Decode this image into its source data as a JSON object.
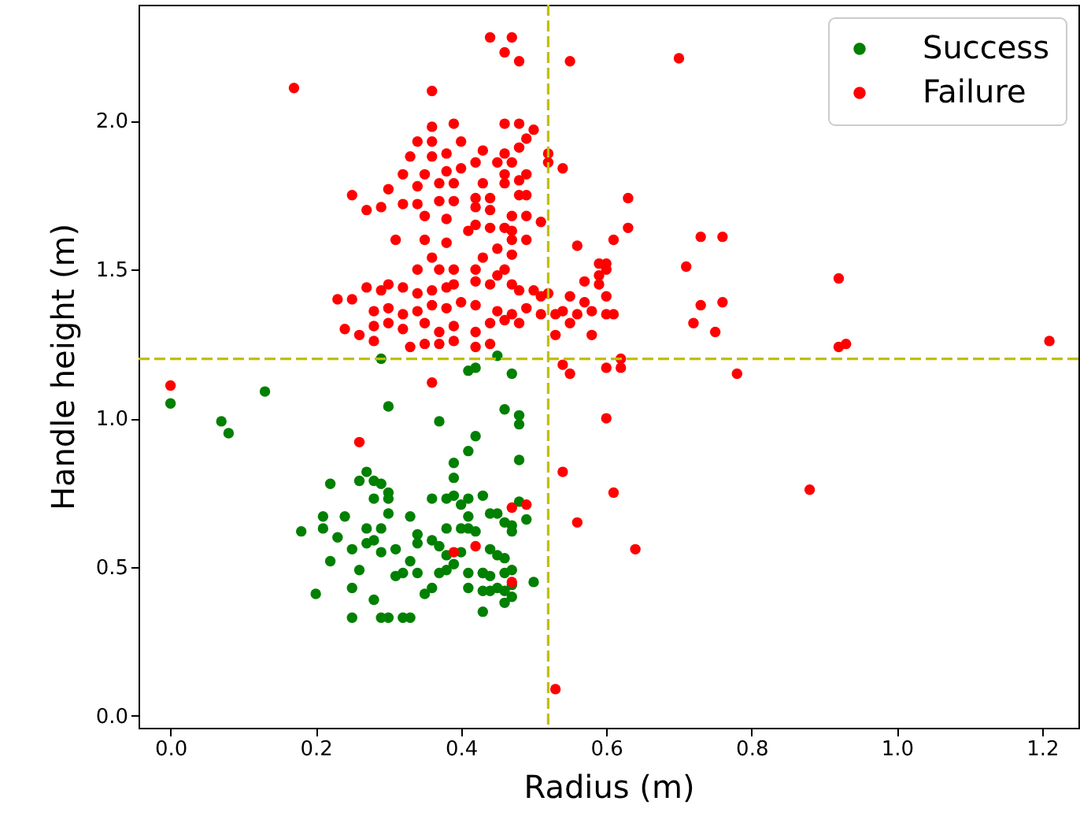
{
  "chart_data": {
    "type": "scatter",
    "xlabel": "Radius (m)",
    "ylabel": "Handle height (m)",
    "xlim": [
      -0.044,
      1.25
    ],
    "ylim": [
      -0.04,
      2.39
    ],
    "xticks": [
      {
        "value": 0,
        "label": "0.0"
      },
      {
        "value": 0.2,
        "label": "0.2"
      },
      {
        "value": 0.4,
        "label": "0.4"
      },
      {
        "value": 0.6,
        "label": "0.6"
      },
      {
        "value": 0.8,
        "label": "0.8"
      },
      {
        "value": 1,
        "label": "1.0"
      },
      {
        "value": 1.2,
        "label": "1.2"
      }
    ],
    "yticks": [
      {
        "value": 0,
        "label": "0.0"
      },
      {
        "value": 0.5,
        "label": "0.5"
      },
      {
        "value": 1,
        "label": "1.0"
      },
      {
        "value": 1.5,
        "label": "1.5"
      },
      {
        "value": 2,
        "label": "2.0"
      }
    ],
    "grid": false,
    "legend": "top right",
    "marker": "circle",
    "ref_lines": [
      {
        "axis": "x",
        "value": 0.52,
        "color": "#bfbf00",
        "line_style": "dashed"
      },
      {
        "axis": "y",
        "value": 1.2,
        "color": "#bfbf00",
        "line_style": "dashed"
      }
    ],
    "series": [
      {
        "name": "Success",
        "color": "#008000",
        "x": [
          0.29,
          0.45,
          0.41,
          0.42,
          0.47,
          0.0,
          0.13,
          0.07,
          0.08,
          0.3,
          0.37,
          0.46,
          0.48,
          0.48,
          0.42,
          0.41,
          0.39,
          0.48,
          0.39,
          0.27,
          0.26,
          0.28,
          0.29,
          0.22,
          0.3,
          0.3,
          0.28,
          0.36,
          0.38,
          0.39,
          0.41,
          0.43,
          0.4,
          0.41,
          0.44,
          0.45,
          0.48,
          0.49,
          0.46,
          0.47,
          0.47,
          0.33,
          0.3,
          0.29,
          0.24,
          0.21,
          0.21,
          0.18,
          0.23,
          0.27,
          0.28,
          0.27,
          0.25,
          0.31,
          0.29,
          0.34,
          0.34,
          0.36,
          0.38,
          0.4,
          0.41,
          0.42,
          0.37,
          0.38,
          0.4,
          0.44,
          0.45,
          0.46,
          0.22,
          0.26,
          0.33,
          0.34,
          0.31,
          0.32,
          0.37,
          0.38,
          0.39,
          0.41,
          0.43,
          0.44,
          0.46,
          0.47,
          0.47,
          0.5,
          0.2,
          0.25,
          0.28,
          0.35,
          0.36,
          0.41,
          0.43,
          0.44,
          0.45,
          0.46,
          0.47,
          0.46,
          0.43,
          0.25,
          0.29,
          0.3,
          0.32,
          0.33,
          0.43
        ],
        "values": [
          1.2,
          1.21,
          1.16,
          1.17,
          1.15,
          1.05,
          1.09,
          0.99,
          0.95,
          1.04,
          0.99,
          1.03,
          1.01,
          0.98,
          0.94,
          0.89,
          0.85,
          0.86,
          0.8,
          0.82,
          0.79,
          0.79,
          0.78,
          0.78,
          0.75,
          0.73,
          0.73,
          0.73,
          0.73,
          0.74,
          0.73,
          0.74,
          0.71,
          0.67,
          0.68,
          0.68,
          0.72,
          0.66,
          0.65,
          0.64,
          0.62,
          0.67,
          0.68,
          0.63,
          0.67,
          0.67,
          0.63,
          0.62,
          0.6,
          0.63,
          0.59,
          0.58,
          0.56,
          0.56,
          0.55,
          0.61,
          0.58,
          0.59,
          0.63,
          0.63,
          0.63,
          0.62,
          0.57,
          0.54,
          0.55,
          0.56,
          0.54,
          0.53,
          0.52,
          0.49,
          0.52,
          0.48,
          0.47,
          0.48,
          0.48,
          0.49,
          0.51,
          0.48,
          0.48,
          0.47,
          0.48,
          0.49,
          0.44,
          0.45,
          0.41,
          0.43,
          0.39,
          0.41,
          0.43,
          0.43,
          0.42,
          0.42,
          0.43,
          0.42,
          0.4,
          0.38,
          0.35,
          0.33,
          0.33,
          0.33,
          0.33,
          0.33,
          0.48
        ]
      },
      {
        "name": "Failure",
        "color": "#ff0000",
        "x": [
          0.0,
          0.36,
          0.26,
          0.54,
          0.61,
          0.56,
          0.6,
          0.47,
          0.49,
          0.39,
          0.42,
          0.47,
          0.53,
          0.54,
          0.55,
          0.6,
          0.62,
          0.62,
          0.78,
          0.92,
          0.93,
          1.21,
          0.88,
          0.64,
          0.72,
          0.75,
          0.53,
          0.58,
          0.17,
          0.44,
          0.47,
          0.46,
          0.48,
          0.55,
          0.7,
          0.36,
          0.36,
          0.39,
          0.46,
          0.48,
          0.5,
          0.49,
          0.48,
          0.52,
          0.52,
          0.54,
          0.34,
          0.36,
          0.4,
          0.33,
          0.36,
          0.38,
          0.43,
          0.46,
          0.47,
          0.32,
          0.35,
          0.38,
          0.4,
          0.42,
          0.45,
          0.46,
          0.49,
          0.3,
          0.34,
          0.37,
          0.39,
          0.43,
          0.46,
          0.48,
          0.25,
          0.27,
          0.29,
          0.32,
          0.34,
          0.37,
          0.39,
          0.42,
          0.44,
          0.48,
          0.49,
          0.35,
          0.38,
          0.42,
          0.44,
          0.47,
          0.49,
          0.51,
          0.41,
          0.42,
          0.44,
          0.46,
          0.47,
          0.31,
          0.35,
          0.38,
          0.47,
          0.49,
          0.56,
          0.61,
          0.43,
          0.45,
          0.47,
          0.36,
          0.34,
          0.37,
          0.39,
          0.42,
          0.46,
          0.23,
          0.25,
          0.27,
          0.29,
          0.3,
          0.32,
          0.34,
          0.36,
          0.38,
          0.39,
          0.42,
          0.44,
          0.45,
          0.47,
          0.48,
          0.5,
          0.52,
          0.28,
          0.3,
          0.32,
          0.34,
          0.36,
          0.38,
          0.4,
          0.42,
          0.45,
          0.47,
          0.49,
          0.51,
          0.24,
          0.26,
          0.28,
          0.3,
          0.32,
          0.35,
          0.37,
          0.39,
          0.42,
          0.44,
          0.46,
          0.48,
          0.28,
          0.33,
          0.35,
          0.37,
          0.42,
          0.44,
          0.39,
          0.63,
          0.63,
          0.73,
          0.76,
          0.71,
          0.92,
          0.59,
          0.6,
          0.6,
          0.59,
          0.57,
          0.59,
          0.6,
          0.57,
          0.55,
          0.54,
          0.56,
          0.58,
          0.6,
          0.61,
          0.55,
          0.51,
          0.53,
          0.73,
          0.76
        ],
        "values": [
          1.11,
          1.12,
          0.92,
          0.82,
          0.75,
          0.65,
          1.0,
          0.7,
          0.71,
          0.55,
          0.57,
          0.45,
          0.09,
          1.18,
          1.15,
          1.17,
          1.2,
          1.17,
          1.15,
          1.24,
          1.25,
          1.26,
          0.76,
          0.56,
          1.32,
          1.29,
          1.28,
          1.28,
          2.11,
          2.28,
          2.28,
          2.23,
          2.2,
          2.2,
          2.21,
          2.1,
          1.98,
          1.99,
          1.99,
          1.99,
          1.97,
          1.94,
          1.91,
          1.89,
          1.86,
          1.84,
          1.93,
          1.93,
          1.93,
          1.88,
          1.88,
          1.89,
          1.9,
          1.89,
          1.86,
          1.82,
          1.82,
          1.83,
          1.84,
          1.86,
          1.86,
          1.82,
          1.82,
          1.77,
          1.78,
          1.79,
          1.79,
          1.79,
          1.79,
          1.8,
          1.75,
          1.7,
          1.71,
          1.72,
          1.72,
          1.73,
          1.73,
          1.74,
          1.74,
          1.75,
          1.75,
          1.68,
          1.67,
          1.71,
          1.7,
          1.68,
          1.68,
          1.66,
          1.63,
          1.65,
          1.64,
          1.64,
          1.63,
          1.6,
          1.6,
          1.59,
          1.6,
          1.6,
          1.58,
          1.6,
          1.54,
          1.57,
          1.55,
          1.54,
          1.5,
          1.5,
          1.5,
          1.5,
          1.5,
          1.4,
          1.4,
          1.44,
          1.43,
          1.45,
          1.44,
          1.42,
          1.43,
          1.44,
          1.45,
          1.46,
          1.45,
          1.48,
          1.45,
          1.43,
          1.43,
          1.42,
          1.36,
          1.37,
          1.35,
          1.36,
          1.38,
          1.37,
          1.39,
          1.38,
          1.36,
          1.35,
          1.37,
          1.35,
          1.3,
          1.28,
          1.31,
          1.32,
          1.3,
          1.32,
          1.29,
          1.31,
          1.29,
          1.32,
          1.33,
          1.32,
          1.26,
          1.24,
          1.25,
          1.25,
          1.24,
          1.25,
          1.26,
          1.74,
          1.64,
          1.61,
          1.61,
          1.51,
          1.47,
          1.52,
          1.52,
          1.5,
          1.48,
          1.46,
          1.45,
          1.41,
          1.39,
          1.41,
          1.36,
          1.35,
          1.36,
          1.35,
          1.35,
          1.32,
          1.41,
          1.35,
          1.38,
          1.39
        ]
      }
    ]
  }
}
